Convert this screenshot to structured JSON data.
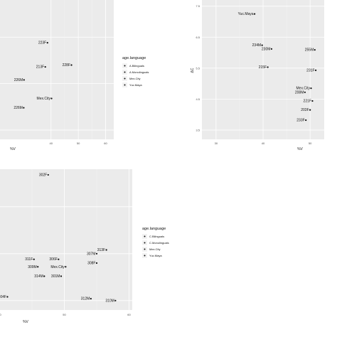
{
  "chart_data": [
    {
      "type": "scatter",
      "xlabel": "%V",
      "ylabel": "",
      "x_ticks": [
        40,
        50,
        60
      ],
      "y_ticks": [],
      "legend": {
        "title": "age.language",
        "entries": [
          "A.Bilinguals",
          "A.Monolinguals",
          "Mex.City",
          "Yuc.Maya"
        ]
      },
      "points": [
        {
          "label": "223F",
          "x": 38.7,
          "y": 0.72
        },
        {
          "label": "213F",
          "x": 37.9,
          "y": 0.59
        },
        {
          "label": "228F",
          "x": 47.5,
          "y": 0.6
        },
        {
          "label": "226M",
          "x": 30.1,
          "y": 0.52
        },
        {
          "label": "Mex.City",
          "x": 40.2,
          "y": 0.42
        },
        {
          "label": "226M",
          "x": 30.0,
          "y": 0.37
        }
      ]
    },
    {
      "type": "scatter",
      "xlabel": "%V",
      "ylabel": "ΔC",
      "x_ticks": [
        30,
        40,
        50
      ],
      "y_ticks": [
        "7.5",
        "6.5",
        "5.5",
        "4.5",
        "3.5"
      ],
      "points": [
        {
          "label": "Yuc.Maya",
          "x": 38.2,
          "y": 7.25
        },
        {
          "label": "234M",
          "x": 39.8,
          "y": 6.24
        },
        {
          "label": "230M",
          "x": 41.8,
          "y": 6.12
        },
        {
          "label": "255M",
          "x": 51.0,
          "y": 6.09
        },
        {
          "label": "215F",
          "x": 41.0,
          "y": 5.53
        },
        {
          "label": "231F",
          "x": 51.2,
          "y": 5.43
        },
        {
          "label": "208M",
          "x": 48.9,
          "y": 4.72
        },
        {
          "label": "Mex.City",
          "x": 50.2,
          "y": 4.85
        },
        {
          "label": "221F",
          "x": 50.5,
          "y": 4.44
        },
        {
          "label": "203F",
          "x": 50.0,
          "y": 4.15
        },
        {
          "label": "233F",
          "x": 49.1,
          "y": 3.82
        }
      ]
    },
    {
      "type": "scatter",
      "xlabel": "%V",
      "ylabel": "",
      "x_ticks": [
        40,
        50,
        60
      ],
      "y_ticks": [],
      "legend": {
        "title": "age.language",
        "entries": [
          "C.Bilinguals",
          "C.Monolinguals",
          "Mex.City",
          "Yuc.Maya"
        ]
      },
      "points": [
        {
          "label": "302F",
          "x": 47.5,
          "y": 0.92
        },
        {
          "label": "313F",
          "x": 56.5,
          "y": 0.52
        },
        {
          "label": "307M",
          "x": 55.0,
          "y": 0.5
        },
        {
          "label": "311F",
          "x": 45.3,
          "y": 0.47
        },
        {
          "label": "306F",
          "x": 49.1,
          "y": 0.47
        },
        {
          "label": "308F",
          "x": 55.0,
          "y": 0.45
        },
        {
          "label": "309M",
          "x": 45.9,
          "y": 0.43
        },
        {
          "label": "Mex.City",
          "x": 50.2,
          "y": 0.43
        },
        {
          "label": "314M",
          "x": 46.9,
          "y": 0.38
        },
        {
          "label": "301M",
          "x": 49.5,
          "y": 0.38
        },
        {
          "label": "304F",
          "x": 41.2,
          "y": 0.27
        },
        {
          "label": "312M",
          "x": 54.1,
          "y": 0.26
        },
        {
          "label": "310M",
          "x": 57.9,
          "y": 0.25
        }
      ]
    }
  ]
}
